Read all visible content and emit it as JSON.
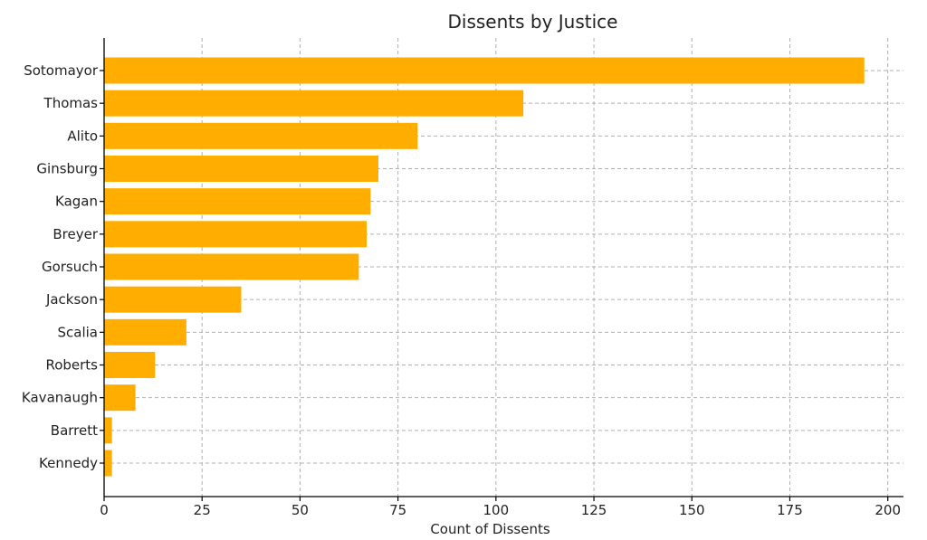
{
  "chart_data": {
    "type": "bar",
    "orientation": "horizontal",
    "title": "Dissents by Justice",
    "xlabel": "Count of Dissents",
    "ylabel": "",
    "xlim": [
      0,
      204
    ],
    "xticks": [
      0,
      25,
      50,
      75,
      100,
      125,
      150,
      175,
      200
    ],
    "grid": true,
    "bar_color": "#FFAE00",
    "categories": [
      "Sotomayor",
      "Thomas",
      "Alito",
      "Ginsburg",
      "Kagan",
      "Breyer",
      "Gorsuch",
      "Jackson",
      "Scalia",
      "Roberts",
      "Kavanaugh",
      "Barrett",
      "Kennedy"
    ],
    "values": [
      194,
      107,
      80,
      70,
      68,
      67,
      65,
      35,
      21,
      13,
      8,
      2,
      2
    ]
  }
}
